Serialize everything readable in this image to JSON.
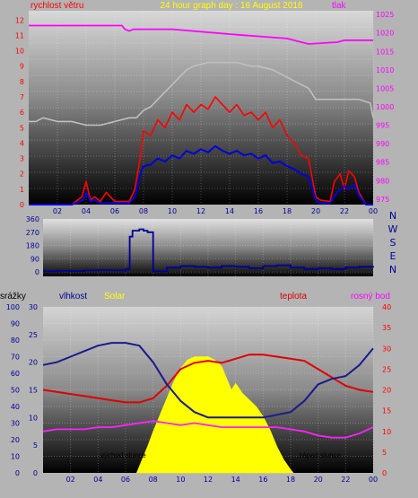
{
  "header": {
    "left_label": "rychlost větru",
    "title": "24 hour graph day : 16 August 2018",
    "right_label": "tlak"
  },
  "colors": {
    "wind": "#ff0000",
    "wind_avg": "#0000dd",
    "pressure": "#ff00ff",
    "pressure_gray": "#c0c0c0",
    "direction": "#000099",
    "humidity": "#1a1a8c",
    "temperature": "#e00000",
    "dewpoint": "#ff22ff",
    "solar": "#ffff00",
    "title_text": "#ffff00",
    "magenta_text": "#ff00ff"
  },
  "x_ticks": [
    "02",
    "04",
    "06",
    "08",
    "10",
    "12",
    "14",
    "16",
    "18",
    "20",
    "22",
    "00"
  ],
  "panel1": {
    "left_ticks": [
      "0",
      "1",
      "2",
      "3",
      "4",
      "5",
      "6",
      "7",
      "8",
      "9",
      "10",
      "11",
      "12"
    ],
    "right_ticks": [
      "975",
      "980",
      "985",
      "990",
      "995",
      "1000",
      "1005",
      "1010",
      "1015",
      "1020",
      "1025"
    ]
  },
  "panel2": {
    "ticks": [
      "0",
      "90",
      "180",
      "270",
      "360"
    ],
    "compass": [
      "N",
      "W",
      "S",
      "E",
      "N"
    ]
  },
  "panel3": {
    "rain_label": "srážky",
    "humidity_label": "vlhkost",
    "solar_label": "Solar",
    "temp_label": "teplota",
    "dew_label": "rosný bod",
    "rain_ticks": [
      "0",
      "10",
      "20",
      "30",
      "40",
      "50",
      "60",
      "70",
      "80",
      "90",
      "100"
    ],
    "hum_ticks": [
      "0",
      "5",
      "10",
      "15",
      "20",
      "25",
      "30"
    ],
    "temp_ticks": [
      "0",
      "5",
      "10",
      "15",
      "20",
      "25",
      "30",
      "35",
      "40"
    ],
    "sunrise": "východ slunce",
    "sunset": "západ slunce"
  },
  "chart_data": [
    {
      "type": "line",
      "title": "24 hour graph day : 16 August 2018",
      "xlabel": "",
      "xlim": [
        0,
        24
      ],
      "ylim": [
        0,
        12.6
      ],
      "y2lim": [
        973.5,
        1026
      ],
      "series": [
        {
          "name": "rychlost větru",
          "axis": "left",
          "x": [
            0,
            3,
            3.7,
            4,
            4.3,
            4.6,
            5,
            5.4,
            6,
            7,
            7.4,
            7.8,
            8,
            8.5,
            9,
            9.5,
            10,
            10.5,
            11,
            11.5,
            12,
            12.5,
            13,
            13.5,
            14,
            14.5,
            15,
            15.5,
            16,
            16.5,
            17,
            17.5,
            18,
            18.5,
            19,
            19.5,
            20,
            20.3,
            21,
            21.3,
            21.7,
            22,
            22.3,
            22.7,
            23,
            23.5,
            24
          ],
          "values": [
            0,
            0,
            0.5,
            1.5,
            0.3,
            0.5,
            0.2,
            0.8,
            0.2,
            0.2,
            1.0,
            3.2,
            4.8,
            4.5,
            5.5,
            5.0,
            6.0,
            5.5,
            6.5,
            6.0,
            6.5,
            6.2,
            7.0,
            6.5,
            6.0,
            6.5,
            5.8,
            6.0,
            5.5,
            6.0,
            5.0,
            5.5,
            4.5,
            4.0,
            3.2,
            3.0,
            0.5,
            0.3,
            0.2,
            1.5,
            2.0,
            1.0,
            2.2,
            1.8,
            0.8,
            0,
            0
          ]
        },
        {
          "axis": "left",
          "x": [
            0,
            3,
            3.8,
            4,
            4.3,
            4.6,
            5,
            6,
            7,
            7.4,
            7.8,
            8,
            8.5,
            9,
            9.5,
            10,
            10.5,
            11,
            11.5,
            12,
            12.5,
            13,
            13.5,
            14,
            14.5,
            15,
            15.5,
            16,
            16.5,
            17,
            17.5,
            18,
            18.5,
            19,
            19.5,
            20,
            20.3,
            21,
            21.5,
            22,
            22.3,
            22.7,
            23,
            23.5,
            24
          ],
          "values": [
            0,
            0,
            0.3,
            0.8,
            0.2,
            0.3,
            0.1,
            0.1,
            0.1,
            0.5,
            2.0,
            2.5,
            2.6,
            3.0,
            2.8,
            3.2,
            3.0,
            3.5,
            3.3,
            3.6,
            3.4,
            3.8,
            3.5,
            3.3,
            3.5,
            3.2,
            3.3,
            3.0,
            3.2,
            2.7,
            2.8,
            2.5,
            2.3,
            2.0,
            1.8,
            0.3,
            0.1,
            0.1,
            0.8,
            1.2,
            1.0,
            1.3,
            0.6,
            0,
            0
          ]
        },
        {
          "name": "tlak",
          "axis": "right",
          "x": [
            0,
            6.5,
            6.7,
            7,
            7.3,
            7.6,
            10,
            14.5,
            18,
            19,
            19.5,
            21.5,
            22,
            22.5,
            24
          ],
          "values": [
            1022,
            1022,
            1021,
            1020.5,
            1021,
            1021,
            1021,
            1019.5,
            1018.5,
            1017.5,
            1017,
            1017.5,
            1018,
            1018,
            1018
          ]
        },
        {
          "axis": "right",
          "x": [
            0,
            0.5,
            1,
            2,
            3,
            4,
            5,
            6,
            7,
            7.5,
            8,
            8.5,
            9,
            9.5,
            10,
            10.5,
            11,
            11.5,
            12,
            12.5,
            13,
            13.5,
            14,
            14.5,
            15,
            15.5,
            16,
            16.5,
            17,
            17.5,
            18,
            18.5,
            19,
            19.5,
            20,
            21,
            22,
            23,
            23.8,
            24
          ],
          "values": [
            996,
            996,
            997,
            996,
            996,
            995,
            995,
            996,
            997,
            997,
            999,
            1000,
            1002,
            1004,
            1006,
            1008,
            1010,
            1011,
            1011.5,
            1012,
            1012,
            1012,
            1012,
            1012,
            1011.5,
            1011,
            1011,
            1010.5,
            1010,
            1009,
            1008,
            1007,
            1006,
            1005,
            1002,
            1002,
            1002,
            1002,
            1001,
            997
          ]
        }
      ]
    },
    {
      "type": "line",
      "xlim": [
        0,
        24
      ],
      "ylim": [
        -30,
        360
      ],
      "series": [
        {
          "x": [
            0,
            1,
            2,
            3,
            4,
            5,
            6,
            6.3,
            6.5,
            7,
            7.3,
            7.6,
            8,
            9,
            10,
            11,
            12,
            13,
            14,
            15,
            16,
            17,
            18,
            19,
            20,
            21,
            22,
            23,
            24
          ],
          "values": [
            5,
            8,
            6,
            10,
            12,
            10,
            20,
            240,
            280,
            290,
            280,
            270,
            5,
            30,
            40,
            35,
            30,
            40,
            35,
            25,
            40,
            45,
            30,
            20,
            25,
            20,
            30,
            35,
            30
          ]
        }
      ]
    },
    {
      "type": "line",
      "xlim": [
        0,
        24
      ],
      "ylim": [
        0,
        100
      ],
      "series": [
        {
          "name": "vlhkost",
          "axis": "hum",
          "ylim": [
            0,
            30
          ],
          "x": [
            0,
            1,
            2,
            3,
            4,
            5,
            6,
            7,
            8,
            9,
            10,
            11,
            12,
            13,
            14,
            15,
            16,
            17,
            18,
            19,
            20,
            21,
            22,
            23,
            24
          ],
          "values": [
            19.5,
            20,
            21,
            22,
            23,
            23.5,
            23.5,
            23,
            20,
            16,
            13,
            11,
            10,
            10,
            10,
            10,
            10,
            10.5,
            11,
            13,
            16,
            17,
            17.5,
            19.5,
            22.5
          ]
        },
        {
          "name": "teplota",
          "axis": "temp",
          "ylim": [
            0,
            40
          ],
          "x": [
            0,
            1,
            2,
            3,
            4,
            5,
            6,
            7,
            8,
            9,
            10,
            11,
            12,
            13,
            14,
            15,
            16,
            17,
            18,
            19,
            20,
            21,
            22,
            23,
            24
          ],
          "values": [
            20,
            19.5,
            19,
            18.5,
            18,
            17.5,
            17,
            17,
            18,
            21,
            25,
            26.5,
            27,
            26.5,
            27.5,
            28.5,
            28.5,
            28,
            27.5,
            27,
            25,
            23,
            21,
            20,
            19.5
          ]
        },
        {
          "name": "rosný bod",
          "axis": "temp",
          "ylim": [
            0,
            40
          ],
          "x": [
            0,
            1,
            2,
            3,
            4,
            5,
            6,
            7,
            8,
            9,
            10,
            11,
            12,
            13,
            14,
            15,
            16,
            17,
            18,
            19,
            20,
            21,
            22,
            23,
            24
          ],
          "values": [
            10,
            10.5,
            10.5,
            10.5,
            11,
            11,
            11.5,
            12,
            12.5,
            12,
            11.5,
            12,
            11.5,
            11,
            11,
            11,
            11,
            11,
            10.5,
            10,
            9,
            8.5,
            8.5,
            9.5,
            11
          ]
        },
        {
          "name": "Solar",
          "axis": "rain",
          "ylim": [
            0,
            100
          ],
          "x": [
            6.8,
            7.2,
            7.6,
            8,
            8.5,
            9,
            9.5,
            10,
            10.5,
            11,
            11.5,
            12,
            12.5,
            13,
            13.3,
            13.7,
            14,
            14.5,
            15,
            15.5,
            16,
            16.5,
            17,
            17.5,
            18,
            18.2
          ],
          "values": [
            0,
            8,
            16,
            25,
            35,
            45,
            55,
            63,
            68,
            70,
            70,
            70,
            68,
            64,
            58,
            50,
            54,
            48,
            44,
            40,
            34,
            26,
            16,
            8,
            2,
            0
          ]
        }
      ]
    }
  ]
}
